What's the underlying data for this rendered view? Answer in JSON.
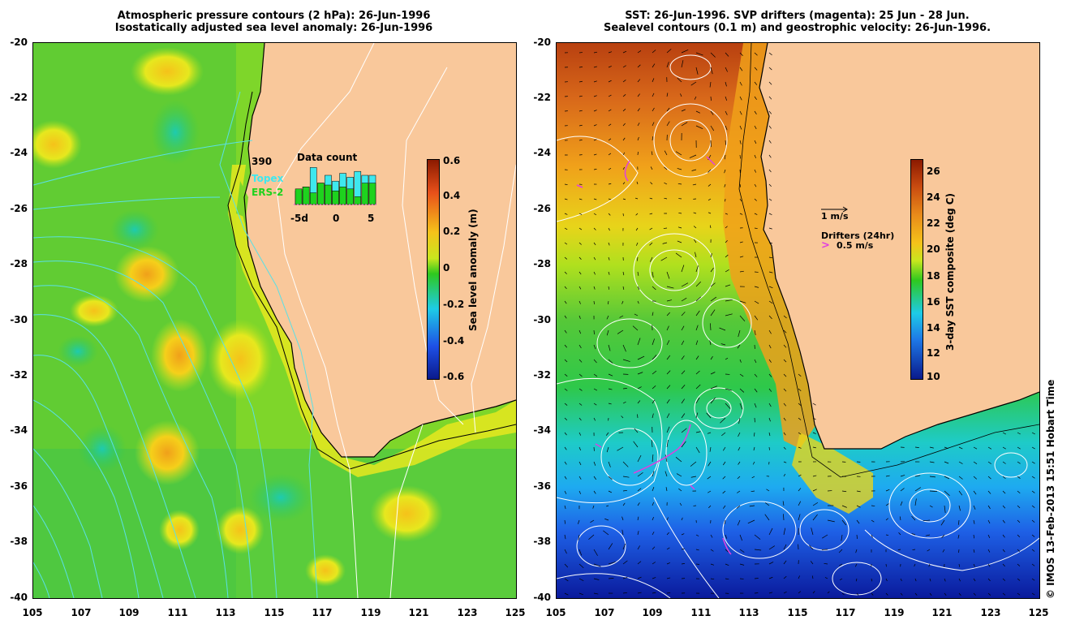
{
  "left_panel": {
    "title_line1": "Atmospheric pressure contours (2 hPa): 26-Jun-1996",
    "title_line2": "Isostatically adjusted sea level anomaly: 26-Jun-1996",
    "colorbar": {
      "label": "Sea level anomaly (m)",
      "ticks": [
        "0.6",
        "0.4",
        "0.2",
        "0",
        "-0.2",
        "-0.4",
        "-0.6"
      ],
      "colors": [
        "#8b1a00",
        "#e8501a",
        "#f5c21a",
        "#c8e61e",
        "#2ec81e",
        "#1ecbe6",
        "#1e50e6",
        "#0a1a8c"
      ]
    },
    "data_count": {
      "title": "Data count",
      "max_label": "390",
      "series_topex": "Topex",
      "series_ers2": "ERS-2",
      "x_ticks": [
        "-5d",
        "0",
        "5"
      ],
      "bars_topex": [
        0.35,
        0.45,
        0.95,
        0.55,
        0.75,
        0.6,
        0.8,
        0.7,
        0.85,
        0.75,
        0.75
      ],
      "bars_ers2": [
        0.4,
        0.45,
        0.3,
        0.55,
        0.5,
        0.35,
        0.45,
        0.4,
        0.2,
        0.55,
        0.55
      ],
      "colors": {
        "topex": "#3ee8ef",
        "ers2": "#1ed21e"
      }
    }
  },
  "right_panel": {
    "title_line1": "SST: 26-Jun-1996. SVP drifters (magenta): 25 Jun - 28 Jun.",
    "title_line2": "Sealevel contours (0.1 m) and geostrophic velocity: 26-Jun-1996.",
    "colorbar": {
      "label": "3-day SST composite (deg C)",
      "ticks": [
        "26",
        "24",
        "22",
        "20",
        "18",
        "16",
        "14",
        "12",
        "10"
      ],
      "colors": [
        "#8b1a00",
        "#c84a10",
        "#e88a1a",
        "#f5c21a",
        "#c8e61e",
        "#2ec81e",
        "#1ecbe6",
        "#1e78e6",
        "#0a1a8c"
      ]
    },
    "velocity_legend": "1 m/s",
    "drifters_legend": "Drifters (24hr)",
    "drifters_speed": "0.5 m/s"
  },
  "axes": {
    "lat_ticks": [
      "-20",
      "-22",
      "-24",
      "-26",
      "-28",
      "-30",
      "-32",
      "-34",
      "-36",
      "-38",
      "-40"
    ],
    "lon_ticks": [
      "105",
      "107",
      "109",
      "111",
      "113",
      "115",
      "117",
      "119",
      "121",
      "123",
      "125"
    ]
  },
  "credit": "© IMOS 13-Feb-2013 15:51 Hobart Time",
  "palette": {
    "land": "#f9c89b",
    "contour": "#ffffff",
    "pressure": "#5ae0e6",
    "drifter": "#e040e0",
    "arrow": "#000000"
  }
}
